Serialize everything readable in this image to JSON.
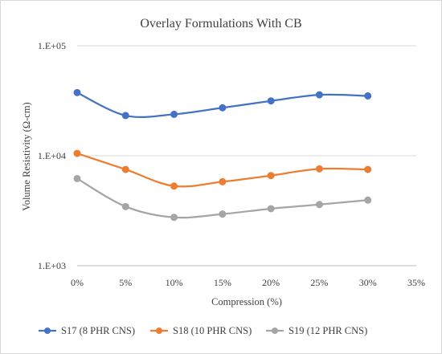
{
  "chart_data": {
    "type": "line",
    "title": "Overlay Formulations With CB",
    "xlabel": "Compression (%)",
    "ylabel": "Volume Resistivity (Ω-cm)",
    "x": [
      0,
      5,
      10,
      15,
      20,
      25,
      30
    ],
    "x_ticks": [
      0,
      5,
      10,
      15,
      20,
      25,
      30,
      35
    ],
    "x_tick_labels": [
      "0%",
      "5%",
      "10%",
      "15%",
      "20%",
      "25%",
      "30%",
      "35%"
    ],
    "xlim": [
      0,
      35
    ],
    "y_scale": "log",
    "ylim": [
      1000,
      100000
    ],
    "y_ticks": [
      1000,
      10000,
      100000
    ],
    "y_tick_labels": [
      "1.E+03",
      "1.E+04",
      "1.E+05"
    ],
    "grid": "horizontal",
    "legend_position": "bottom",
    "series": [
      {
        "name": "S17 (8 PHR CNS)",
        "color": "#4472C4",
        "values": [
          37500,
          23200,
          23800,
          27300,
          31500,
          35800,
          35000
        ]
      },
      {
        "name": "S18 (10 PHR CNS)",
        "color": "#ED7D31",
        "values": [
          10500,
          7500,
          5300,
          5800,
          6600,
          7600,
          7500
        ]
      },
      {
        "name": "S19 (12 PHR CNS)",
        "color": "#A5A5A5",
        "values": [
          6200,
          3450,
          2750,
          2950,
          3300,
          3600,
          3950
        ]
      }
    ]
  }
}
